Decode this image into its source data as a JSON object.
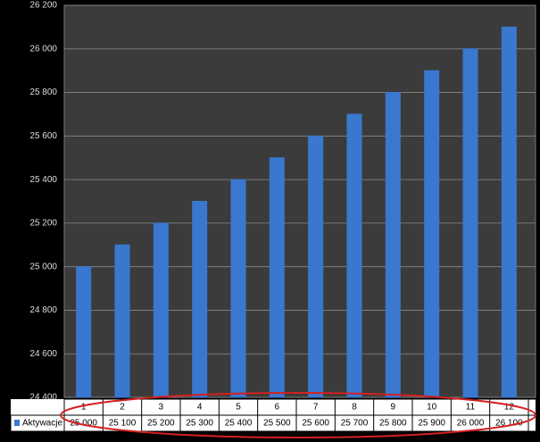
{
  "chart_data": {
    "type": "bar",
    "categories": [
      "1",
      "2",
      "3",
      "4",
      "5",
      "6",
      "7",
      "8",
      "9",
      "10",
      "11",
      "12"
    ],
    "series": [
      {
        "name": "Aktywacje",
        "color": "#3a78d0",
        "values": [
          25000,
          25100,
          25200,
          25300,
          25400,
          25500,
          25600,
          25700,
          25800,
          25900,
          26000,
          26100
        ],
        "value_labels": [
          "25 000",
          "25 100",
          "25 200",
          "25 300",
          "25 400",
          "25 500",
          "25 600",
          "25 700",
          "25 800",
          "25 900",
          "26 000",
          "26 100"
        ]
      }
    ],
    "ylim": [
      24400,
      26200
    ],
    "yticks": [
      {
        "value": 24400,
        "label": "24 400"
      },
      {
        "value": 24600,
        "label": "24 600"
      },
      {
        "value": 24800,
        "label": "24 800"
      },
      {
        "value": 25000,
        "label": "25 000"
      },
      {
        "value": 25200,
        "label": "25 200"
      },
      {
        "value": 25400,
        "label": "25 400"
      },
      {
        "value": 25600,
        "label": "25 600"
      },
      {
        "value": 25800,
        "label": "25 800"
      },
      {
        "value": 26000,
        "label": "26 000"
      },
      {
        "value": 26200,
        "label": "26 200"
      }
    ],
    "grid": true
  }
}
